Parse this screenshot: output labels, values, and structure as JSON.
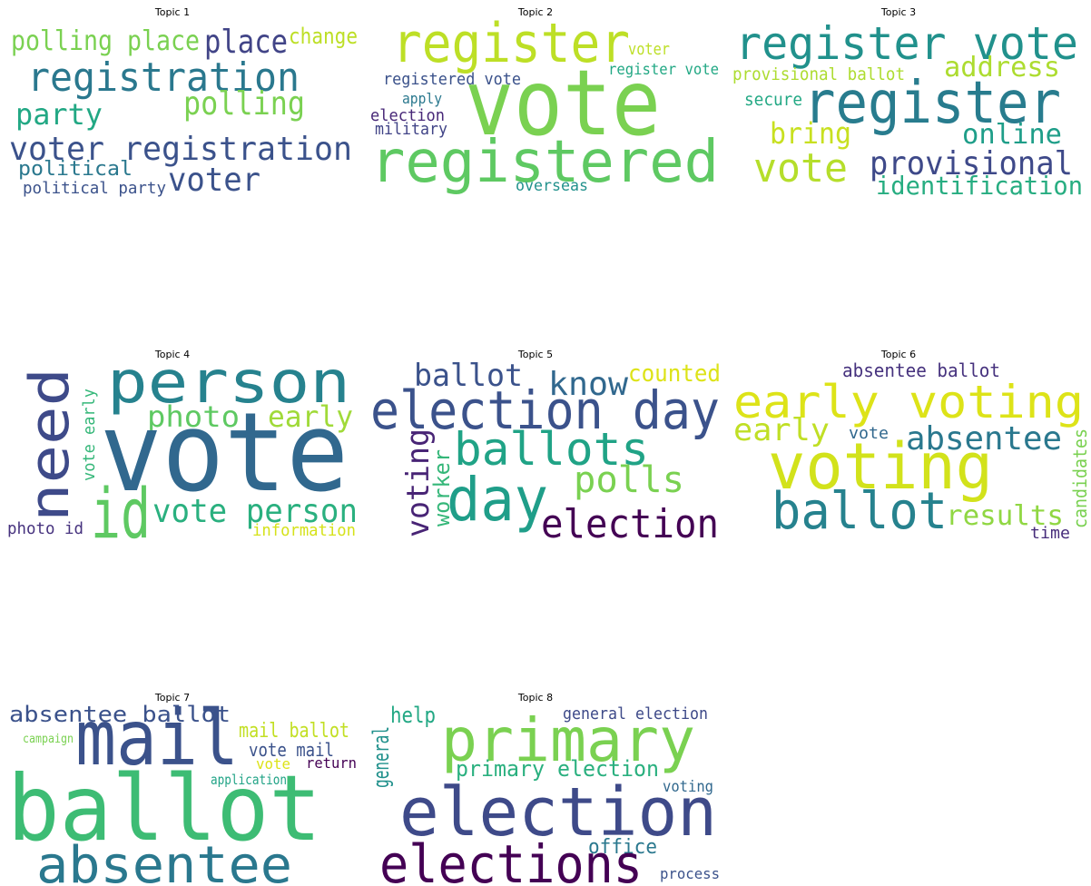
{
  "topics": [
    {
      "title": "Topic 1",
      "words": [
        {
          "text": "polling place",
          "color": "#7ad151"
        },
        {
          "text": "place",
          "color": "#414487"
        },
        {
          "text": "change",
          "color": "#bddf26"
        },
        {
          "text": "registration",
          "color": "#2a788e"
        },
        {
          "text": "party",
          "color": "#22a884"
        },
        {
          "text": "polling",
          "color": "#7ad151"
        },
        {
          "text": "voter registration",
          "color": "#3b528b"
        },
        {
          "text": "political",
          "color": "#2a788e"
        },
        {
          "text": "political party",
          "color": "#3b528b"
        },
        {
          "text": "voter",
          "color": "#3b528b"
        }
      ]
    },
    {
      "title": "Topic 2",
      "words": [
        {
          "text": "register",
          "color": "#bddf26"
        },
        {
          "text": "voter",
          "color": "#bddf26"
        },
        {
          "text": "register vote",
          "color": "#22a884"
        },
        {
          "text": "registered vote",
          "color": "#3b528b"
        },
        {
          "text": "vote",
          "color": "#7ad151"
        },
        {
          "text": "apply",
          "color": "#2a788e"
        },
        {
          "text": "election",
          "color": "#482878"
        },
        {
          "text": "military",
          "color": "#414487"
        },
        {
          "text": "registered",
          "color": "#5ec962"
        },
        {
          "text": "overseas",
          "color": "#21918c"
        }
      ]
    },
    {
      "title": "Topic 3",
      "words": [
        {
          "text": "register vote",
          "color": "#21918c"
        },
        {
          "text": "provisional ballot",
          "color": "#addc30"
        },
        {
          "text": "address",
          "color": "#addc30"
        },
        {
          "text": "register",
          "color": "#287c8e"
        },
        {
          "text": "secure",
          "color": "#22a884"
        },
        {
          "text": "bring",
          "color": "#c8e020"
        },
        {
          "text": "online",
          "color": "#1f9e89"
        },
        {
          "text": "vote",
          "color": "#b5de2b"
        },
        {
          "text": "provisional",
          "color": "#3e4989"
        },
        {
          "text": "identification",
          "color": "#27ad81"
        }
      ]
    },
    {
      "title": "Topic 4",
      "words": [
        {
          "text": "person",
          "color": "#26828e"
        },
        {
          "text": "need",
          "color": "#3e4a89"
        },
        {
          "text": "vote early",
          "color": "#35b779"
        },
        {
          "text": "photo",
          "color": "#5ec962"
        },
        {
          "text": "early",
          "color": "#a0da39"
        },
        {
          "text": "vote",
          "color": "#31688e"
        },
        {
          "text": "id",
          "color": "#5ec962"
        },
        {
          "text": "vote person",
          "color": "#2ab07f"
        },
        {
          "text": "photo id",
          "color": "#46327e"
        },
        {
          "text": "information",
          "color": "#d5e21a"
        }
      ]
    },
    {
      "title": "Topic 5",
      "words": [
        {
          "text": "ballot",
          "color": "#3b528b"
        },
        {
          "text": "know",
          "color": "#31688e"
        },
        {
          "text": "counted",
          "color": "#dde318"
        },
        {
          "text": "election day",
          "color": "#3b528b"
        },
        {
          "text": "ballots",
          "color": "#20a386"
        },
        {
          "text": "voting",
          "color": "#482475"
        },
        {
          "text": "worker",
          "color": "#35b779"
        },
        {
          "text": "day",
          "color": "#1f9e89"
        },
        {
          "text": "polls",
          "color": "#7ad151"
        },
        {
          "text": "election",
          "color": "#440154"
        }
      ]
    },
    {
      "title": "Topic 6",
      "words": [
        {
          "text": "absentee ballot",
          "color": "#46327e"
        },
        {
          "text": "early voting",
          "color": "#dde318"
        },
        {
          "text": "early",
          "color": "#c0df25"
        },
        {
          "text": "vote",
          "color": "#31688e"
        },
        {
          "text": "absentee",
          "color": "#2a788e"
        },
        {
          "text": "voting",
          "color": "#d2e21b"
        },
        {
          "text": "ballot",
          "color": "#26828e"
        },
        {
          "text": "results",
          "color": "#90d743"
        },
        {
          "text": "candidates",
          "color": "#7ad151"
        },
        {
          "text": "time",
          "color": "#472d7b"
        }
      ]
    },
    {
      "title": "Topic 7",
      "words": [
        {
          "text": "absentee ballot",
          "color": "#3b528b"
        },
        {
          "text": "campaign",
          "color": "#7ad151"
        },
        {
          "text": "mail",
          "color": "#3b528b"
        },
        {
          "text": "mail ballot",
          "color": "#c2df23"
        },
        {
          "text": "vote mail",
          "color": "#3b528b"
        },
        {
          "text": "vote",
          "color": "#dde318"
        },
        {
          "text": "return",
          "color": "#440154"
        },
        {
          "text": "application",
          "color": "#20a386"
        },
        {
          "text": "ballot",
          "color": "#3dbc74"
        },
        {
          "text": "absentee",
          "color": "#2a788e"
        }
      ]
    },
    {
      "title": "Topic 8",
      "words": [
        {
          "text": "help",
          "color": "#22a884"
        },
        {
          "text": "general election",
          "color": "#3e4a89"
        },
        {
          "text": "primary",
          "color": "#7ad151"
        },
        {
          "text": "general",
          "color": "#21918c"
        },
        {
          "text": "primary election",
          "color": "#2ab07f"
        },
        {
          "text": "voting",
          "color": "#31688e"
        },
        {
          "text": "election",
          "color": "#3e4a89"
        },
        {
          "text": "office",
          "color": "#2a788e"
        },
        {
          "text": "elections",
          "color": "#440154"
        },
        {
          "text": "process",
          "color": "#3b528b"
        }
      ]
    }
  ]
}
